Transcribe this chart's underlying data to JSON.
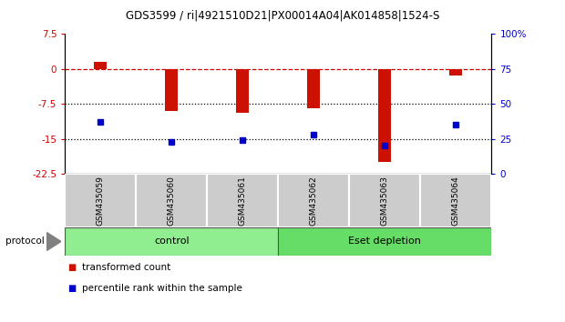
{
  "title": "GDS3599 / ri|4921510D21|PX00014A04|AK014858|1524-S",
  "categories": [
    "GSM435059",
    "GSM435060",
    "GSM435061",
    "GSM435062",
    "GSM435063",
    "GSM435064"
  ],
  "red_values": [
    1.5,
    -9.0,
    -9.5,
    -8.5,
    -20.0,
    -1.5
  ],
  "blue_values": [
    37,
    23,
    24,
    28,
    20,
    35
  ],
  "ylim_left": [
    -22.5,
    7.5
  ],
  "ylim_right": [
    0,
    100
  ],
  "yticks_left": [
    7.5,
    0,
    -7.5,
    -15,
    -22.5
  ],
  "yticks_right": [
    100,
    75,
    50,
    25,
    0
  ],
  "ytick_labels_left": [
    "7.5",
    "0",
    "-7.5",
    "-15",
    "-22.5"
  ],
  "ytick_labels_right": [
    "100%",
    "75",
    "50",
    "25",
    "0"
  ],
  "hlines": [
    0,
    -7.5,
    -15
  ],
  "hline_styles": [
    "dashed",
    "dotted",
    "dotted"
  ],
  "hline_colors": [
    "#cc0000",
    "#000000",
    "#000000"
  ],
  "bar_width": 0.18,
  "red_color": "#cc1100",
  "blue_color": "#0000cc",
  "gray_color": "#cccccc",
  "control_color": "#90ee90",
  "eset_color": "#66dd66",
  "control_label": "control",
  "eset_label": "Eset depletion",
  "protocol_label": "protocol",
  "legend_red": "transformed count",
  "legend_blue": "percentile rank within the sample",
  "left_label_color": "#cc0000",
  "right_label_color": "#0000cc",
  "figsize": [
    6.2,
    3.54
  ],
  "dpi": 100
}
